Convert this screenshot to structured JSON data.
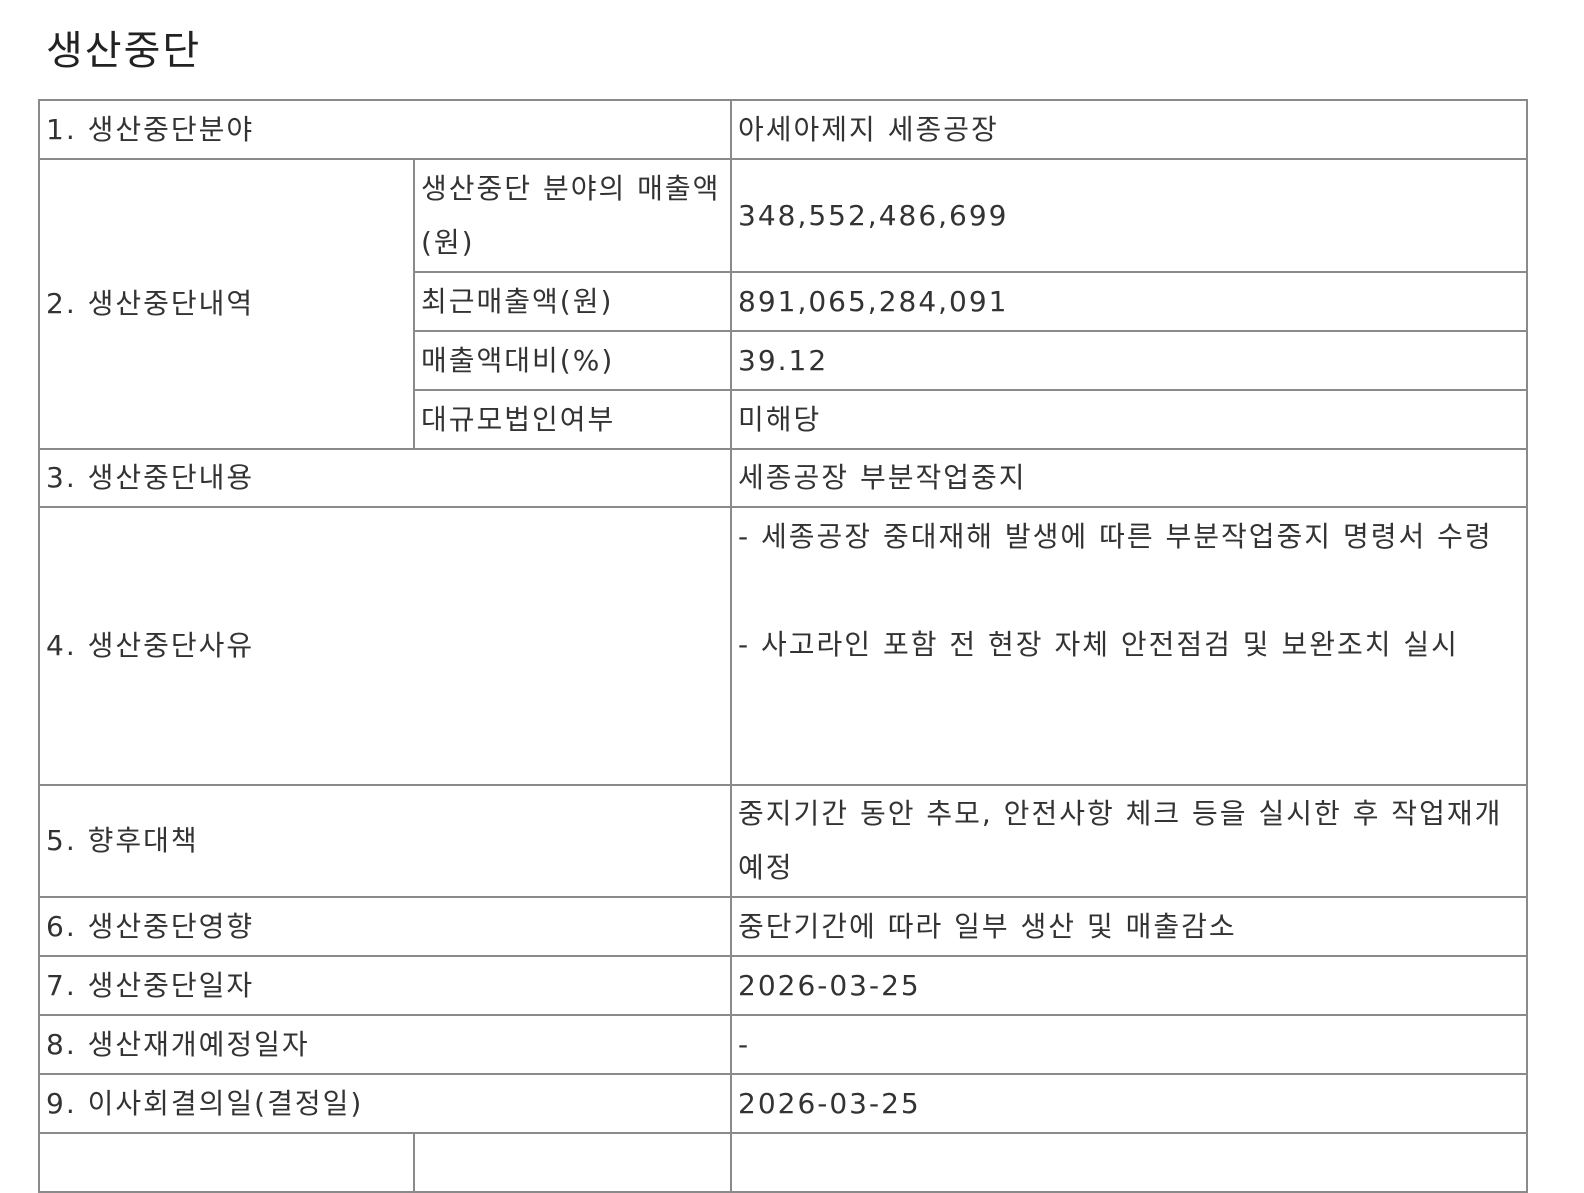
{
  "title": "생산중단",
  "rows": {
    "r1": {
      "label": "1. 생산중단분야",
      "value": "아세아제지 세종공장"
    },
    "r2": {
      "label": "2. 생산중단내역",
      "sub": [
        {
          "label": "생산중단 분야의 매출액(원)",
          "value": "348,552,486,699"
        },
        {
          "label": "최근매출액(원)",
          "value": "891,065,284,091"
        },
        {
          "label": "매출액대비(%)",
          "value": "39.12"
        },
        {
          "label": "대규모법인여부",
          "value": "미해당"
        }
      ]
    },
    "r3": {
      "label": "3. 생산중단내용",
      "value": "세종공장 부분작업중지"
    },
    "r4": {
      "label": "4. 생산중단사유",
      "value1": "- 세종공장 중대재해 발생에 따른 부분작업중지 명령서 수령",
      "value2": "- 사고라인 포함 전 현장 자체 안전점검 및 보완조치 실시"
    },
    "r5": {
      "label": "5. 향후대책",
      "value": "중지기간 동안 추모, 안전사항 체크 등을 실시한 후 작업재개 예정"
    },
    "r6": {
      "label": "6. 생산중단영향",
      "value": "중단기간에 따라 일부 생산 및 매출감소"
    },
    "r7": {
      "label": "7. 생산중단일자",
      "value": "2026-03-25"
    },
    "r8": {
      "label": "8. 생산재개예정일자",
      "value": "-"
    },
    "r9": {
      "label": "9. 이사회결의일(결정일)",
      "value": "2026-03-25"
    }
  }
}
